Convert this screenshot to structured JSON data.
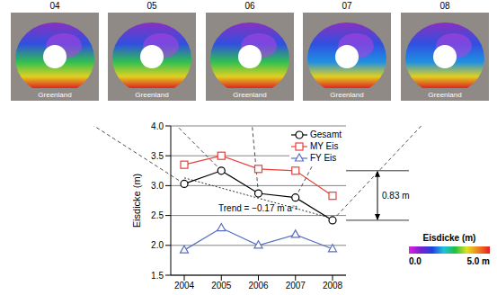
{
  "chart_data": {
    "type": "line",
    "categories": [
      "2004",
      "2005",
      "2006",
      "2007",
      "2008"
    ],
    "series": [
      {
        "name": "Gesamt",
        "color": "#000000",
        "marker": "circle",
        "values": [
          3.03,
          3.25,
          2.87,
          2.8,
          2.42
        ]
      },
      {
        "name": "MY Eis",
        "color": "#e8403a",
        "marker": "square",
        "values": [
          3.35,
          3.5,
          3.28,
          3.25,
          2.83
        ]
      },
      {
        "name": "FY Eis",
        "color": "#5b6fc4",
        "marker": "triangle",
        "values": [
          1.92,
          2.29,
          2.0,
          2.18,
          1.94
        ]
      }
    ],
    "trend": {
      "label": "Trend = −0.17 m a⁻¹",
      "values": [
        3.13,
        2.96,
        2.79,
        2.62,
        2.45
      ],
      "color": "#333333",
      "line_style": "dotted"
    },
    "annotation": {
      "text": "0.83 m",
      "from": 3.25,
      "to": 2.42
    },
    "y_label": "Eisdicke (m)",
    "ylim": [
      1.5,
      4.0
    ],
    "yticks": [
      1.5,
      {
        "value": 2,
        "label": "2.0"
      },
      2.5,
      {
        "value": 3,
        "label": "3.0"
      },
      3.5,
      {
        "value": 4,
        "label": "4.0"
      }
    ],
    "grid": true,
    "legend": "upper right"
  },
  "maps": {
    "labels": [
      "04",
      "05",
      "06",
      "07",
      "08"
    ],
    "region_label": "Greenland"
  },
  "color_bar": {
    "label": "Eisdicke (m)",
    "range": [
      0,
      5
    ],
    "ticks": [
      {
        "value": 0,
        "label": "0.0"
      },
      {
        "value": 5,
        "label": "5.0 m"
      }
    ],
    "colors": [
      "#e020e0",
      "#7a20d0",
      "#2040e0",
      "#20c0e0",
      "#20c040",
      "#e0e020",
      "#f08020",
      "#e02020"
    ]
  }
}
